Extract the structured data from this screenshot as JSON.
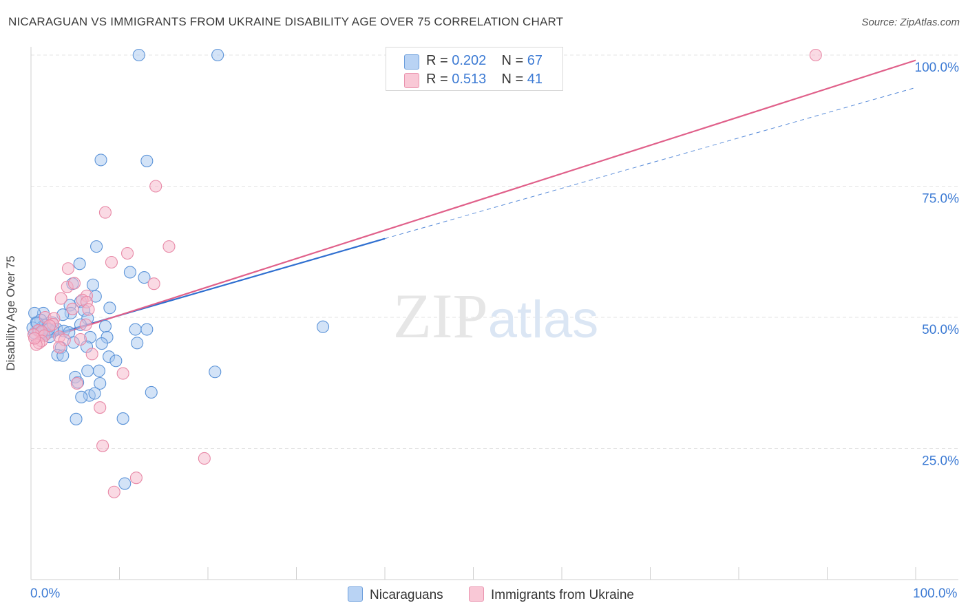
{
  "title": "NICARAGUAN VS IMMIGRANTS FROM UKRAINE DISABILITY AGE OVER 75 CORRELATION CHART",
  "source": "Source: ZipAtlas.com",
  "watermark": "ZIPatlas",
  "legend": {
    "row1": {
      "r_label": "R = ",
      "r_value": "0.202",
      "n_label": "N = ",
      "n_value": "67"
    },
    "row2": {
      "r_label": "R = ",
      "r_value": "0.513",
      "n_label": "N = ",
      "n_value": "41"
    }
  },
  "colors": {
    "blue_fill": "#a8c8f0",
    "blue_stroke": "#5b93d8",
    "blue_line": "#2f6fd0",
    "pink_fill": "#f6b6c9",
    "pink_stroke": "#e889a7",
    "pink_line": "#e0608a",
    "tick_text": "#3d7bd4",
    "grid": "#e3e3e3"
  },
  "chart_data": {
    "type": "scatter",
    "xlabel": "",
    "ylabel": "Disability Age Over 75",
    "xlim": [
      0,
      100
    ],
    "ylim": [
      0,
      100
    ],
    "x_tick_labels": [
      "0.0%",
      "100.0%"
    ],
    "y_ticks": [
      25,
      50,
      75,
      100
    ],
    "y_tick_labels": [
      "25.0%",
      "50.0%",
      "75.0%",
      "100.0%"
    ],
    "grid": true,
    "legend_position": "top-center",
    "series": [
      {
        "name": "Nicaraguans",
        "color": "#a8c8f0",
        "points": [
          [
            12.2,
            100
          ],
          [
            21.1,
            100
          ],
          [
            7.9,
            80
          ],
          [
            13.1,
            79.8
          ],
          [
            7.4,
            63.5
          ],
          [
            5.5,
            60.2
          ],
          [
            11.2,
            58.6
          ],
          [
            12.8,
            57.6
          ],
          [
            7.0,
            56.2
          ],
          [
            4.7,
            56.4
          ],
          [
            7.3,
            54
          ],
          [
            5.6,
            53
          ],
          [
            4.4,
            52.3
          ],
          [
            8.9,
            51.8
          ],
          [
            6.0,
            51.3
          ],
          [
            1.4,
            50.8
          ],
          [
            0.4,
            50.8
          ],
          [
            4.5,
            50.8
          ],
          [
            3.6,
            50.5
          ],
          [
            1.1,
            49.5
          ],
          [
            6.4,
            49.8
          ],
          [
            0.6,
            49
          ],
          [
            2.4,
            49
          ],
          [
            5.6,
            48.6
          ],
          [
            8.4,
            48.3
          ],
          [
            1.3,
            48.2
          ],
          [
            1.8,
            48
          ],
          [
            2.9,
            47.8
          ],
          [
            11.8,
            47.7
          ],
          [
            13.1,
            47.7
          ],
          [
            3.7,
            47.4
          ],
          [
            2.5,
            47.3
          ],
          [
            4.3,
            47.1
          ],
          [
            0.4,
            47
          ],
          [
            1.7,
            46.8
          ],
          [
            2.1,
            46.3
          ],
          [
            8.6,
            46.2
          ],
          [
            6.7,
            46.2
          ],
          [
            4.8,
            45.2
          ],
          [
            12.0,
            45.1
          ],
          [
            8.0,
            45
          ],
          [
            6.3,
            44.4
          ],
          [
            3.4,
            44.2
          ],
          [
            8.8,
            42.5
          ],
          [
            3.0,
            42.8
          ],
          [
            3.6,
            42.7
          ],
          [
            9.6,
            41.7
          ],
          [
            7.7,
            39.8
          ],
          [
            6.4,
            39.8
          ],
          [
            5.0,
            38.6
          ],
          [
            7.8,
            37.4
          ],
          [
            5.3,
            37.6
          ],
          [
            6.6,
            35.1
          ],
          [
            5.7,
            34.8
          ],
          [
            7.2,
            35.5
          ],
          [
            13.6,
            35.7
          ],
          [
            5.1,
            30.6
          ],
          [
            10.4,
            30.7
          ],
          [
            10.6,
            18.3
          ],
          [
            20.8,
            39.6
          ],
          [
            33.0,
            48.2
          ],
          [
            0.2,
            48.0
          ],
          [
            0.9,
            47.5
          ],
          [
            1.6,
            48.5
          ],
          [
            2.0,
            47.7
          ],
          [
            0.7,
            48.9
          ],
          [
            1.2,
            47.1
          ]
        ]
      },
      {
        "name": "Immigrants from Ukraine",
        "color": "#f6b6c9",
        "points": [
          [
            88.7,
            100
          ],
          [
            14.1,
            75
          ],
          [
            8.4,
            70
          ],
          [
            15.6,
            63.5
          ],
          [
            10.9,
            62.2
          ],
          [
            9.1,
            60.5
          ],
          [
            4.2,
            59.3
          ],
          [
            13.9,
            56.4
          ],
          [
            4.1,
            55.8
          ],
          [
            4.9,
            56.5
          ],
          [
            6.3,
            54.1
          ],
          [
            3.4,
            53.6
          ],
          [
            5.8,
            53.3
          ],
          [
            6.3,
            52.9
          ],
          [
            4.7,
            51.6
          ],
          [
            6.5,
            51.5
          ],
          [
            1.6,
            50
          ],
          [
            2.6,
            49.8
          ],
          [
            2.5,
            48.7
          ],
          [
            6.2,
            48.6
          ],
          [
            2.1,
            48.4
          ],
          [
            0.8,
            47.5
          ],
          [
            1.2,
            47.3
          ],
          [
            0.3,
            46.7
          ],
          [
            1.5,
            46.5
          ],
          [
            3.2,
            46.3
          ],
          [
            3.8,
            45.7
          ],
          [
            1.2,
            45.5
          ],
          [
            5.6,
            45.8
          ],
          [
            0.9,
            45.1
          ],
          [
            3.2,
            44.3
          ],
          [
            0.6,
            44.8
          ],
          [
            6.9,
            43
          ],
          [
            10.4,
            39.3
          ],
          [
            5.2,
            37.4
          ],
          [
            7.8,
            32.8
          ],
          [
            8.1,
            25.5
          ],
          [
            19.6,
            23.1
          ],
          [
            11.9,
            19.4
          ],
          [
            9.4,
            16.7
          ],
          [
            0.4,
            46.0
          ]
        ]
      }
    ],
    "trend_lines": [
      {
        "series": "Nicaraguans",
        "x": [
          0,
          40
        ],
        "y": [
          45.5,
          65
        ],
        "dashed_extension_x": [
          40,
          100
        ],
        "dashed_extension_y": [
          65,
          93.8
        ]
      },
      {
        "series": "Immigrants from Ukraine",
        "x": [
          0,
          100
        ],
        "y": [
          45,
          99
        ]
      }
    ]
  },
  "bottom_legend": {
    "item1": "Nicaraguans",
    "item2": "Immigrants from Ukraine"
  }
}
